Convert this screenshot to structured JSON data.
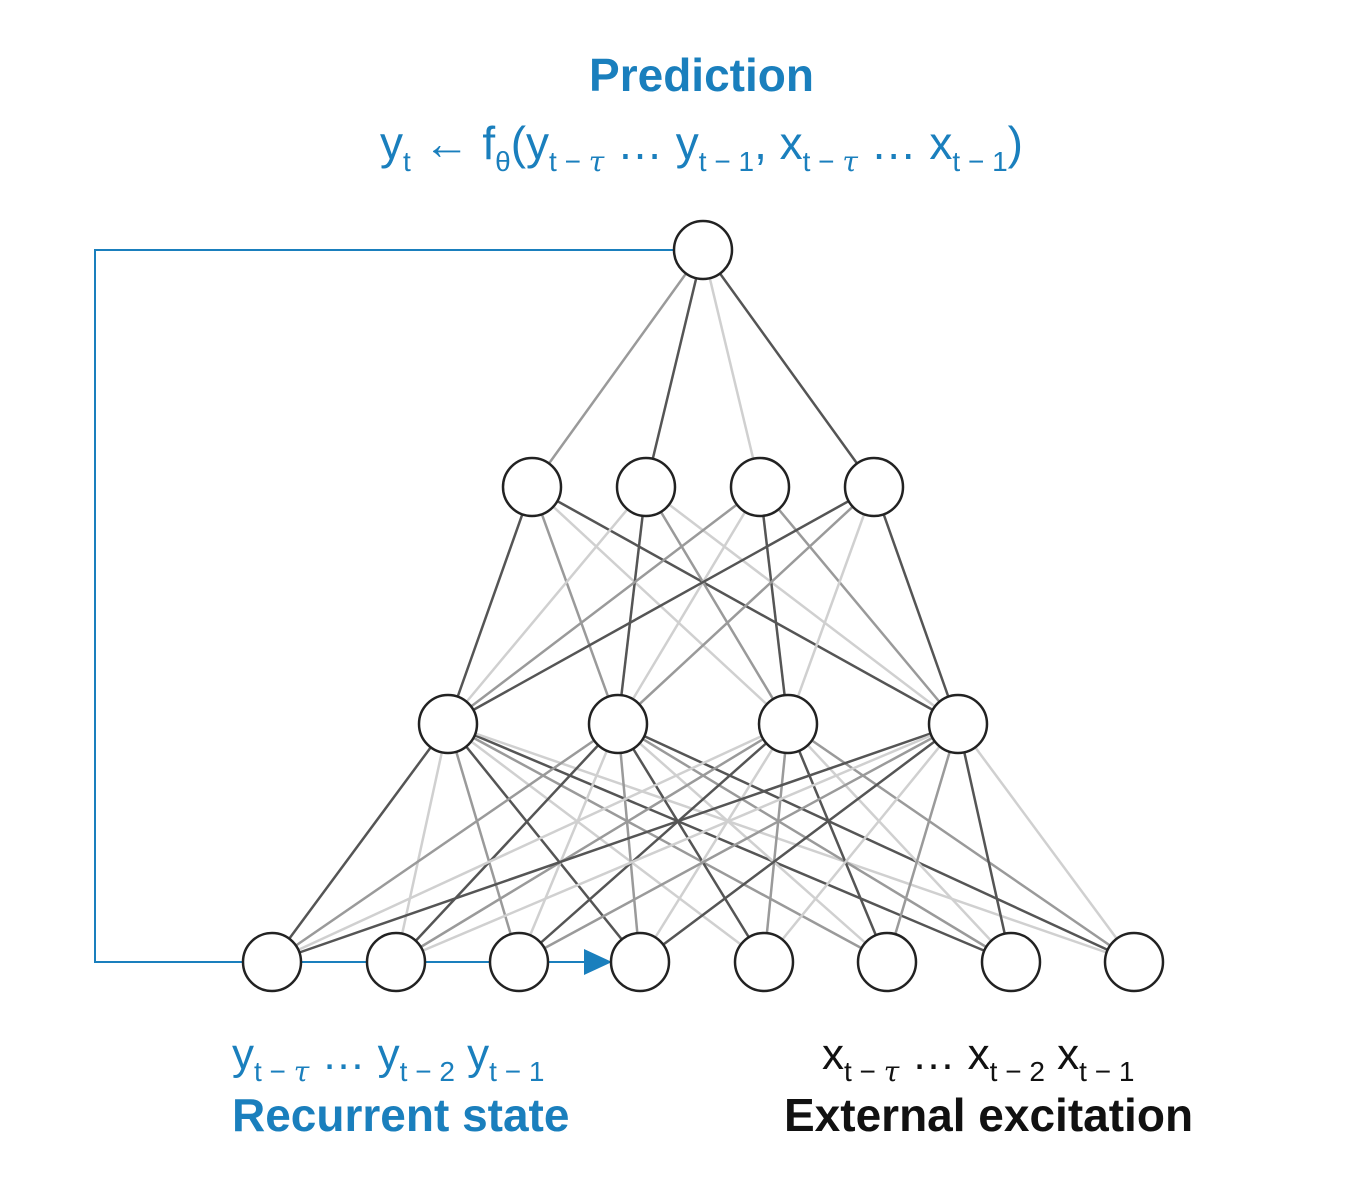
{
  "title": "Prediction",
  "formula": {
    "lhs": "y",
    "lhs_sub": "t",
    "arrow": "←",
    "f": "f",
    "f_sub": "θ",
    "open": "(",
    "y1": "y",
    "y1_sub": "t − τ",
    "dots1": "…",
    "y2": "y",
    "y2_sub": "t − 1",
    "comma": ",",
    "x1": "x",
    "x1_sub": "t − τ",
    "dots2": "…",
    "x2": "x",
    "x2_sub": "t − 1",
    "close": ")"
  },
  "recurrent": {
    "seq": {
      "a": "y",
      "a_sub": "t − τ",
      "dots": "…",
      "b": "y",
      "b_sub": "t − 2",
      "c": "y",
      "c_sub": "t − 1"
    },
    "label": "Recurrent state"
  },
  "external": {
    "seq": {
      "a": "x",
      "a_sub": "t − τ",
      "dots": "…",
      "b": "x",
      "b_sub": "t − 2",
      "c": "x",
      "c_sub": "t − 1"
    },
    "label": "External excitation"
  },
  "colors": {
    "accent": "#1a7fbd",
    "text": "#111111",
    "node_stroke": "#222222",
    "edge_dark": "#555555",
    "edge_mid": "#9a9a9a",
    "edge_light": "#d0d0d0"
  }
}
